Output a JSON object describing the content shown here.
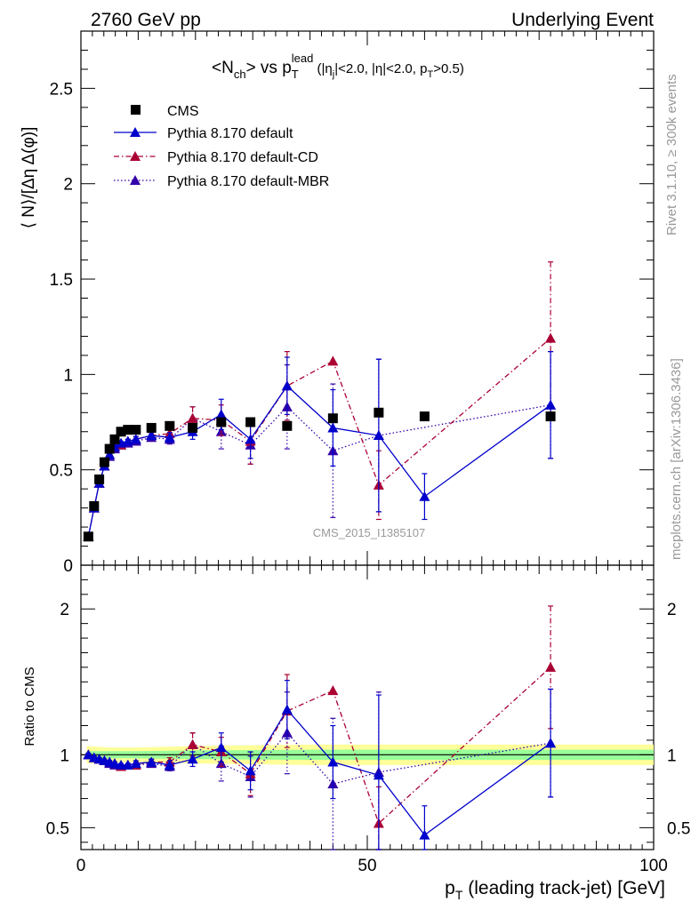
{
  "header": {
    "left": "2760 GeV pp",
    "right": "Underlying Event"
  },
  "title": {
    "prefix": "<N",
    "prefix_sub": "ch",
    "mid": "> vs p",
    "p_sub": "T",
    "p_sup": "lead",
    "cut1": " (|η",
    "cut1_sub": "j",
    "cut2": "|<2.0, |η|<2.0, p",
    "cut2_sub": "T",
    "cut3": ">0.5)"
  },
  "side_labels": {
    "rivet": "Rivet 3.1.10, ≥ 300k events",
    "mcplots": "mcplots.cern.ch [arXiv:1306.3436]"
  },
  "watermark": "CMS_2015_I1385107",
  "colors": {
    "cms": "#000000",
    "default": "#0000cc",
    "cd": "#aa0033",
    "mbr": "#3300aa",
    "band_outer": "#ffff99",
    "band_inner": "#99ff99"
  },
  "chart_data": [
    {
      "type": "scatter",
      "panel": "main",
      "ylabel": "⟨ N⟩/[Δη Δ(φ)]",
      "xlim": [
        0,
        100
      ],
      "ylim": [
        0,
        2.8
      ],
      "y_ticks": [
        "0",
        "0.5",
        "1",
        "1.5",
        "2",
        "2.5"
      ],
      "y_tick_values": [
        0,
        0.5,
        1,
        1.5,
        2,
        2.5
      ],
      "legend_position": "top-left",
      "series": [
        {
          "name": "CMS",
          "key": "cms",
          "style": "square",
          "x": [
            1.3,
            2.3,
            3.2,
            4.1,
            5.0,
            5.9,
            7.0,
            8.2,
            9.6,
            12.3,
            15.5,
            19.5,
            24.5,
            29.6,
            36.0,
            44.0,
            52.0,
            60.0,
            82.0
          ],
          "y": [
            0.15,
            0.31,
            0.45,
            0.54,
            0.61,
            0.66,
            0.7,
            0.71,
            0.71,
            0.72,
            0.73,
            0.72,
            0.75,
            0.75,
            0.73,
            0.77,
            0.8,
            0.78,
            0.78
          ],
          "err": [
            0.01,
            0.01,
            0.01,
            0.01,
            0.01,
            0.01,
            0.01,
            0.01,
            0.01,
            0.01,
            0.01,
            0.01,
            0.01,
            0.01,
            0.01,
            0.01,
            0.01,
            0.01,
            0.01
          ]
        },
        {
          "name": "Pythia 8.170 default",
          "key": "default",
          "style": "solid",
          "x": [
            1.3,
            2.3,
            3.2,
            4.1,
            5.0,
            5.9,
            7.0,
            8.2,
            9.6,
            12.3,
            15.5,
            19.5,
            24.5,
            29.6,
            36.0,
            44.0,
            52.0,
            60.0,
            82.0
          ],
          "y": [
            0.15,
            0.3,
            0.43,
            0.52,
            0.58,
            0.62,
            0.64,
            0.65,
            0.66,
            0.68,
            0.67,
            0.7,
            0.79,
            0.66,
            0.94,
            0.72,
            0.68,
            0.36,
            0.84
          ],
          "err": [
            0.005,
            0.005,
            0.005,
            0.01,
            0.01,
            0.01,
            0.01,
            0.01,
            0.015,
            0.02,
            0.025,
            0.04,
            0.08,
            0.1,
            0.15,
            0.2,
            0.4,
            0.12,
            0.28
          ]
        },
        {
          "name": "Pythia 8.170 default-CD",
          "key": "cd",
          "style": "dashdot",
          "x": [
            1.3,
            2.3,
            3.2,
            4.1,
            5.0,
            5.9,
            7.0,
            8.2,
            9.6,
            12.3,
            15.5,
            19.5,
            24.5,
            29.6,
            36.0,
            44.0,
            52.0,
            82.0
          ],
          "y": [
            0.15,
            0.3,
            0.43,
            0.52,
            0.58,
            0.62,
            0.63,
            0.65,
            0.66,
            0.68,
            0.69,
            0.77,
            0.76,
            0.65,
            0.94,
            1.07,
            0.42,
            1.19
          ],
          "err": [
            0.005,
            0.005,
            0.005,
            0.01,
            0.01,
            0.01,
            0.01,
            0.01,
            0.015,
            0.02,
            0.025,
            0.06,
            0.08,
            0.12,
            0.18,
            0.0,
            0.18,
            0.4
          ]
        },
        {
          "name": "Pythia 8.170 default-MBR",
          "key": "mbr",
          "style": "dotted",
          "x": [
            1.3,
            2.3,
            3.2,
            4.1,
            5.0,
            5.9,
            7.0,
            8.2,
            9.6,
            12.3,
            15.5,
            19.5,
            24.5,
            29.6,
            36.0,
            44.0,
            52.0,
            82.0
          ],
          "y": [
            0.15,
            0.3,
            0.43,
            0.52,
            0.57,
            0.61,
            0.63,
            0.64,
            0.65,
            0.67,
            0.66,
            0.77,
            0.7,
            0.63,
            0.83,
            0.6,
            0.68,
            0.84
          ],
          "err": [
            0.005,
            0.005,
            0.005,
            0.01,
            0.01,
            0.01,
            0.01,
            0.01,
            0.015,
            0.02,
            0.025,
            0.06,
            0.09,
            0.1,
            0.22,
            0.35,
            0.4,
            0.28
          ]
        }
      ]
    },
    {
      "type": "scatter",
      "panel": "ratio",
      "ylabel": "Ratio to CMS",
      "xlabel_prefix": "p",
      "xlabel_sub": "T",
      "xlabel_suffix": " (leading track-jet) [GeV]",
      "xlim": [
        0,
        100
      ],
      "ylim": [
        0.35,
        2.3
      ],
      "x_ticks": [
        "0",
        "50",
        "100"
      ],
      "x_tick_values": [
        0,
        50,
        100
      ],
      "y_ticks": [
        "0.5",
        "1",
        "2"
      ],
      "y_tick_values": [
        0.5,
        1,
        2
      ],
      "reference_line": 1,
      "band": {
        "x": [
          1,
          5,
          10,
          20,
          40,
          60,
          100
        ],
        "inner": [
          0.025,
          0.025,
          0.025,
          0.03,
          0.035,
          0.035,
          0.035
        ],
        "outer": [
          0.06,
          0.05,
          0.05,
          0.06,
          0.07,
          0.07,
          0.07
        ]
      },
      "series": [
        {
          "name": "Pythia 8.170 default",
          "key": "default",
          "style": "solid",
          "x": [
            1.3,
            2.3,
            3.2,
            4.1,
            5.0,
            5.9,
            7.0,
            8.2,
            9.6,
            12.3,
            15.5,
            19.5,
            24.5,
            29.6,
            36.0,
            44.0,
            52.0,
            60.0,
            82.0
          ],
          "y": [
            1.0,
            0.98,
            0.97,
            0.96,
            0.95,
            0.94,
            0.93,
            0.93,
            0.94,
            0.95,
            0.93,
            0.97,
            1.05,
            0.89,
            1.31,
            0.95,
            0.86,
            0.45,
            1.08
          ],
          "err": [
            0.01,
            0.01,
            0.01,
            0.01,
            0.01,
            0.01,
            0.01,
            0.01,
            0.02,
            0.02,
            0.03,
            0.05,
            0.1,
            0.13,
            0.2,
            0.25,
            0.55,
            0.2,
            0.37
          ]
        },
        {
          "name": "Pythia 8.170 default-CD",
          "key": "cd",
          "style": "dashdot",
          "x": [
            1.3,
            2.3,
            3.2,
            4.1,
            5.0,
            5.9,
            7.0,
            8.2,
            9.6,
            12.3,
            15.5,
            19.5,
            24.5,
            29.6,
            36.0,
            44.0,
            52.0,
            82.0
          ],
          "y": [
            1.0,
            0.98,
            0.97,
            0.96,
            0.95,
            0.94,
            0.92,
            0.93,
            0.93,
            0.95,
            0.95,
            1.07,
            1.02,
            0.87,
            1.3,
            1.44,
            0.53,
            1.6
          ],
          "err": [
            0.01,
            0.01,
            0.01,
            0.01,
            0.01,
            0.01,
            0.01,
            0.01,
            0.02,
            0.02,
            0.03,
            0.08,
            0.1,
            0.15,
            0.25,
            0.0,
            0.25,
            0.42
          ]
        },
        {
          "name": "Pythia 8.170 default-MBR",
          "key": "mbr",
          "style": "dotted",
          "x": [
            1.3,
            2.3,
            3.2,
            4.1,
            5.0,
            5.9,
            7.0,
            8.2,
            9.6,
            12.3,
            15.5,
            19.5,
            24.5,
            29.6,
            36.0,
            44.0,
            52.0,
            82.0
          ],
          "y": [
            1.0,
            0.98,
            0.97,
            0.96,
            0.94,
            0.93,
            0.92,
            0.93,
            0.93,
            0.94,
            0.92,
            1.07,
            0.94,
            0.85,
            1.15,
            0.8,
            0.88,
            1.08
          ],
          "err": [
            0.01,
            0.01,
            0.01,
            0.01,
            0.01,
            0.01,
            0.01,
            0.01,
            0.02,
            0.02,
            0.03,
            0.08,
            0.12,
            0.14,
            0.28,
            0.45,
            0.55,
            0.37
          ]
        }
      ]
    }
  ]
}
